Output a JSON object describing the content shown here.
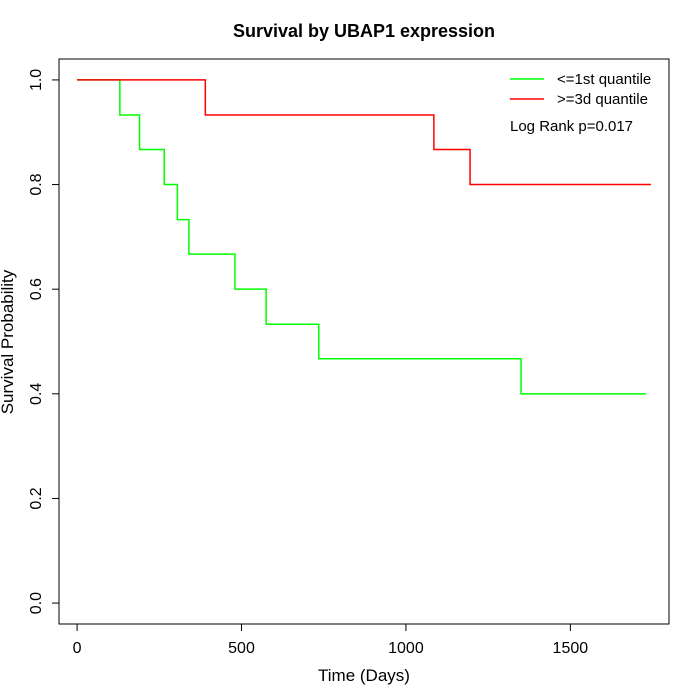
{
  "chart_data": {
    "type": "line",
    "title": "Survival by UBAP1 expression",
    "xlabel": "Time (Days)",
    "ylabel": "Survival Probability",
    "xlim": [
      -55,
      1800
    ],
    "ylim": [
      -0.04,
      1.04
    ],
    "x_ticks": [
      0,
      500,
      1000,
      1500
    ],
    "y_ticks": [
      0.0,
      0.2,
      0.4,
      0.6,
      0.8,
      1.0
    ],
    "x_tick_labels": [
      "0",
      "500",
      "1000",
      "1500"
    ],
    "y_tick_labels": [
      "0.0",
      "0.2",
      "0.4",
      "0.6",
      "0.8",
      "1.0"
    ],
    "grid": false,
    "legend_position": "top-right",
    "annotation": "Log Rank p=0.017",
    "series": [
      {
        "name": "<=1st quantile",
        "color": "#00ff00",
        "step": true,
        "points": [
          [
            0,
            1.0
          ],
          [
            130,
            0.933
          ],
          [
            190,
            0.867
          ],
          [
            265,
            0.8
          ],
          [
            305,
            0.733
          ],
          [
            340,
            0.667
          ],
          [
            480,
            0.6
          ],
          [
            575,
            0.533
          ],
          [
            735,
            0.467
          ],
          [
            1350,
            0.4
          ],
          [
            1730,
            0.4
          ]
        ]
      },
      {
        "name": ">=3d quantile",
        "color": "#ff0000",
        "step": true,
        "points": [
          [
            0,
            1.0
          ],
          [
            390,
            0.933
          ],
          [
            1085,
            0.867
          ],
          [
            1195,
            0.8
          ],
          [
            1745,
            0.8
          ]
        ]
      }
    ]
  }
}
